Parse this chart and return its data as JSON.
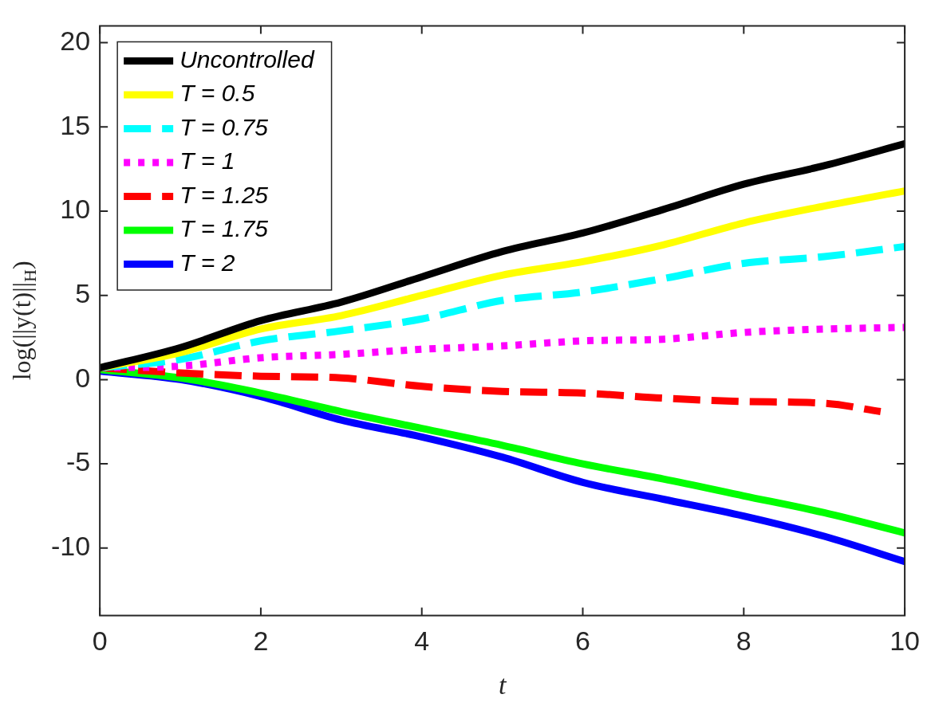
{
  "chart_data": {
    "type": "line",
    "xlabel": "t",
    "ylabel": "log(||y(t)||$_{H}$)",
    "xlim": [
      0,
      10
    ],
    "ylim": [
      -14,
      21
    ],
    "xticks": [
      0,
      2,
      4,
      6,
      8,
      10
    ],
    "yticks": [
      -10,
      -5,
      0,
      5,
      10,
      15,
      20
    ],
    "grid": false,
    "legend": "top left",
    "marker": "none",
    "series": [
      {
        "name": "Uncontrolled",
        "color": "#000000",
        "line_style": "solid",
        "x": [
          0,
          1,
          2,
          3,
          4,
          5,
          6,
          7,
          8,
          9,
          10
        ],
        "values": [
          0.7,
          1.9,
          3.5,
          4.6,
          6.1,
          7.6,
          8.7,
          10.1,
          11.6,
          12.7,
          14.0
        ]
      },
      {
        "name": "T = 0.5",
        "color": "#ffff00",
        "line_style": "solid",
        "x": [
          0,
          1,
          2,
          3,
          4,
          5,
          6,
          7,
          8,
          9,
          10
        ],
        "values": [
          0.7,
          1.6,
          3.0,
          3.8,
          5.0,
          6.2,
          7.0,
          8.0,
          9.3,
          10.3,
          11.2
        ]
      },
      {
        "name": "T = 0.75",
        "color": "#00ffff",
        "line_style": "dashed",
        "x": [
          0,
          1,
          2,
          3,
          4,
          5,
          6,
          7,
          8,
          9,
          10
        ],
        "values": [
          0.7,
          1.2,
          2.3,
          2.9,
          3.6,
          4.7,
          5.2,
          6.0,
          6.9,
          7.3,
          7.9
        ]
      },
      {
        "name": "T = 1",
        "color": "#ff00ff",
        "line_style": "dotted",
        "x": [
          0,
          1,
          2,
          3,
          4,
          5,
          6,
          7,
          8,
          9,
          10
        ],
        "values": [
          0.7,
          0.8,
          1.3,
          1.5,
          1.8,
          2.0,
          2.3,
          2.4,
          2.8,
          3.0,
          3.1
        ]
      },
      {
        "name": "T = 1.25",
        "color": "#ff0000",
        "line_style": "dashed",
        "x": [
          0,
          1,
          2,
          3,
          4,
          5,
          6,
          7,
          8,
          9,
          9.7
        ],
        "values": [
          0.7,
          0.4,
          0.2,
          0.1,
          -0.4,
          -0.7,
          -0.8,
          -1.1,
          -1.3,
          -1.4,
          -1.9
        ]
      },
      {
        "name": "T = 1.75",
        "color": "#00ff00",
        "line_style": "solid",
        "x": [
          0,
          1,
          2,
          3,
          4,
          5,
          6,
          7,
          8,
          9,
          10
        ],
        "values": [
          0.6,
          0.1,
          -0.8,
          -1.9,
          -2.9,
          -3.9,
          -5.0,
          -5.9,
          -6.9,
          -7.9,
          -9.1
        ]
      },
      {
        "name": "T = 2",
        "color": "#0000ff",
        "line_style": "solid",
        "x": [
          0,
          1,
          2,
          3,
          4,
          5,
          6,
          7,
          8,
          9,
          10
        ],
        "values": [
          0.5,
          0.0,
          -1.0,
          -2.4,
          -3.4,
          -4.6,
          -6.1,
          -7.1,
          -8.1,
          -9.3,
          -10.8
        ]
      }
    ]
  }
}
